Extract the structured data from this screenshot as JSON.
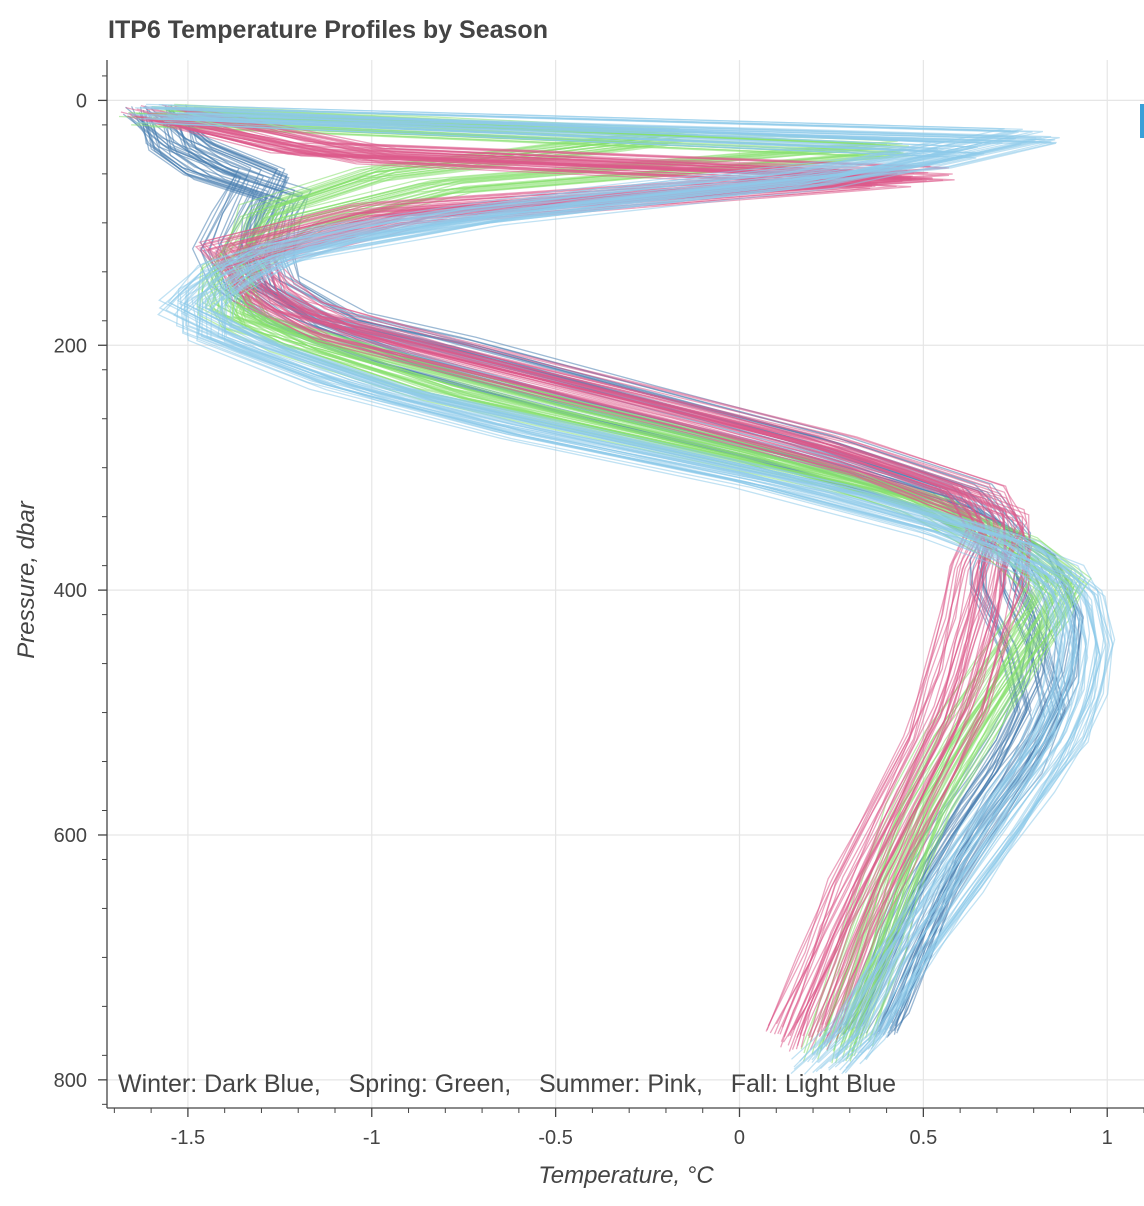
{
  "chart_data": {
    "type": "line",
    "title": "ITP6 Temperature Profiles by Season",
    "xlabel": "Temperature, °C",
    "ylabel": "Pressure, dbar",
    "xlim": [
      -1.72,
      1.1
    ],
    "ylim": [
      823,
      -33
    ],
    "y_inverted": true,
    "grid": true,
    "x_ticks": [
      -1.5,
      -1,
      -0.5,
      0,
      0.5,
      1
    ],
    "x_tick_labels": [
      "-1.5",
      "-1",
      "-0.5",
      "0",
      "0.5",
      "1"
    ],
    "y_ticks": [
      0,
      200,
      400,
      600,
      800
    ],
    "y_tick_labels": [
      "0",
      "200",
      "400",
      "600",
      "800"
    ],
    "annotation": "Winter: Dark Blue,    Spring: Green,    Summer: Pink,    Fall: Light Blue",
    "series": [
      {
        "color": "#4a7fb0",
        "profiles": [
          {
            "pressure": [
              10,
              40,
              60,
              80,
              100,
              130,
              150,
              180,
              200,
              240,
              280,
              320,
              360,
              380,
              400,
              450,
              500,
              550,
              600,
              650,
              700,
              760
            ],
            "temperature": [
              -1.58,
              -1.55,
              -1.45,
              -1.25,
              -1.28,
              -1.3,
              -1.28,
              -1.1,
              -0.8,
              -0.3,
              0.2,
              0.6,
              0.72,
              0.7,
              0.7,
              0.78,
              0.82,
              0.74,
              0.62,
              0.52,
              0.44,
              0.36
            ]
          },
          {
            "pressure": [
              10,
              35,
              60,
              90,
              120,
              150,
              180,
              210,
              250,
              290,
              330,
              370,
              395,
              420,
              470,
              520,
              570,
              620,
              680,
              740,
              760
            ],
            "temperature": [
              -1.6,
              -1.5,
              -1.3,
              -1.35,
              -1.4,
              -1.36,
              -1.22,
              -0.95,
              -0.45,
              0.1,
              0.55,
              0.78,
              0.82,
              0.86,
              0.84,
              0.76,
              0.64,
              0.54,
              0.46,
              0.38,
              0.34
            ]
          }
        ]
      },
      {
        "color": "#86e06e",
        "profiles": [
          {
            "pressure": [
              10,
              30,
              60,
              90,
              120,
              150,
              180,
              210,
              250,
              290,
              330,
              370,
              400,
              430,
              480,
              530,
              580,
              640,
              700,
              770
            ],
            "temperature": [
              -1.56,
              -0.2,
              -1.0,
              -1.3,
              -1.35,
              -1.4,
              -1.35,
              -1.0,
              -0.5,
              0.05,
              0.5,
              0.72,
              0.85,
              0.8,
              0.7,
              0.6,
              0.5,
              0.42,
              0.36,
              0.28
            ]
          },
          {
            "pressure": [
              15,
              40,
              70,
              100,
              140,
              170,
              200,
              240,
              280,
              320,
              360,
              390,
              420,
              460,
              520,
              580,
              640,
              710,
              780
            ],
            "temperature": [
              -1.6,
              0.4,
              -0.8,
              -1.2,
              -1.38,
              -1.4,
              -1.2,
              -0.8,
              -0.2,
              0.4,
              0.75,
              0.88,
              0.82,
              0.72,
              0.58,
              0.48,
              0.4,
              0.32,
              0.25
            ]
          }
        ]
      },
      {
        "color": "#dc5a8a",
        "profiles": [
          {
            "pressure": [
              10,
              40,
              60,
              90,
              120,
              150,
              170,
              200,
              240,
              280,
              320,
              350,
              380,
              420,
              470,
              520,
              580,
              640,
              700,
              760
            ],
            "temperature": [
              -1.6,
              -1.2,
              0.5,
              -1.0,
              -1.4,
              -1.3,
              -1.2,
              -0.85,
              -0.3,
              0.25,
              0.65,
              0.7,
              0.65,
              0.62,
              0.58,
              0.52,
              0.42,
              0.32,
              0.24,
              0.15
            ]
          },
          {
            "pressure": [
              12,
              45,
              65,
              95,
              130,
              160,
              190,
              220,
              260,
              300,
              340,
              370,
              400,
              440,
              500,
              560,
              620,
              680,
              740,
              770
            ],
            "temperature": [
              -1.55,
              -1.0,
              0.4,
              -0.9,
              -1.35,
              -1.3,
              -1.1,
              -0.7,
              -0.15,
              0.35,
              0.7,
              0.72,
              0.7,
              0.66,
              0.6,
              0.5,
              0.4,
              0.3,
              0.22,
              0.18
            ]
          }
        ]
      },
      {
        "color": "#8ecbea",
        "profiles": [
          {
            "pressure": [
              10,
              30,
              50,
              80,
              110,
              140,
              170,
              200,
              240,
              280,
              320,
              360,
              400,
              440,
              480,
              520,
              560,
              600,
              650,
              700,
              760,
              790
            ],
            "temperature": [
              -1.55,
              0.8,
              0.5,
              -0.4,
              -1.1,
              -1.4,
              -1.5,
              -1.3,
              -0.9,
              -0.3,
              0.3,
              0.75,
              0.92,
              0.95,
              0.93,
              0.88,
              0.78,
              0.68,
              0.56,
              0.44,
              0.32,
              0.22
            ]
          },
          {
            "pressure": [
              12,
              40,
              65,
              95,
              125,
              160,
              190,
              230,
              270,
              310,
              350,
              385,
              410,
              450,
              490,
              540,
              590,
              640,
              700,
              760,
              780
            ],
            "temperature": [
              -1.58,
              0.6,
              0.2,
              -0.7,
              -1.25,
              -1.45,
              -1.45,
              -1.1,
              -0.6,
              0.05,
              0.55,
              0.85,
              0.9,
              0.93,
              0.9,
              0.82,
              0.72,
              0.6,
              0.46,
              0.34,
              0.28
            ]
          }
        ]
      }
    ]
  }
}
